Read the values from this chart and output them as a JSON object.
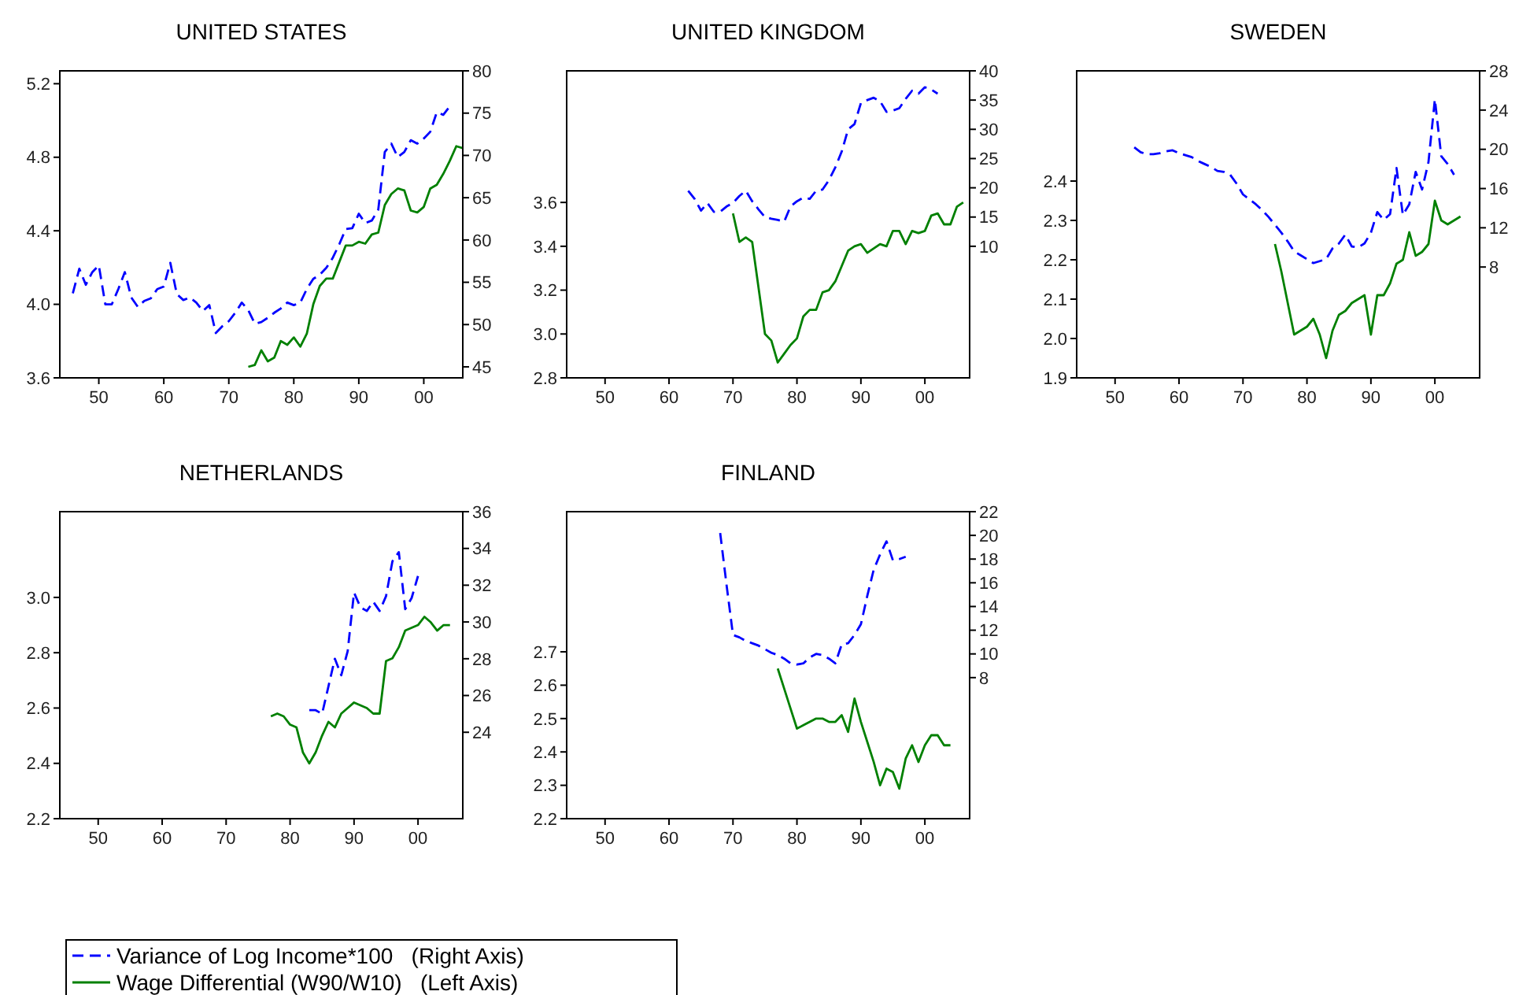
{
  "chart_data": [
    {
      "type": "line",
      "title": "UNITED STATES",
      "xlim": [
        1944,
        2006
      ],
      "xticks": [
        {
          "value": 1950,
          "label": "50"
        },
        {
          "value": 1960,
          "label": "60"
        },
        {
          "value": 1970,
          "label": "70"
        },
        {
          "value": 1980,
          "label": "80"
        },
        {
          "value": 1990,
          "label": "90"
        },
        {
          "value": 2000,
          "label": "00"
        }
      ],
      "ylim": [
        3.6,
        5.27
      ],
      "yticks": [
        {
          "value": 3.6,
          "label": "3.6"
        },
        {
          "value": 4,
          "label": "4.0"
        },
        {
          "value": 4.4,
          "label": "4.4"
        },
        {
          "value": 4.8,
          "label": "4.8"
        },
        {
          "value": 5.2,
          "label": "5.2"
        }
      ],
      "y2lim": [
        43.7,
        80
      ],
      "y2ticks": [
        45,
        50,
        55,
        60,
        65,
        70,
        75,
        80
      ],
      "legend": "bottom",
      "series": [
        {
          "name": "Variance of Log Income*100   (Right Axis)",
          "color": "#0000ff",
          "axis": "y2",
          "line_style": "dashed",
          "x": [
            1946,
            1947,
            1948,
            1949,
            1950,
            1951,
            1952,
            1953,
            1954,
            1955,
            1956,
            1957,
            1958,
            1959,
            1960,
            1961,
            1962,
            1963,
            1964,
            1965,
            1966,
            1967,
            1968,
            1969,
            1970,
            1971,
            1972,
            1973,
            1974,
            1975,
            1976,
            1977,
            1978,
            1979,
            1980,
            1981,
            1982,
            1983,
            1984,
            1985,
            1986,
            1987,
            1988,
            1989,
            1990,
            1991,
            1992,
            1993,
            1994,
            1995,
            1996,
            1997,
            1998,
            1999,
            2000,
            2001,
            2002,
            2003,
            2004
          ],
          "values": [
            53.7,
            56.6,
            54.7,
            56.2,
            57,
            52.4,
            52.4,
            54.2,
            56.2,
            53.2,
            52.1,
            52.8,
            53.1,
            54.2,
            54.5,
            57.3,
            53.6,
            52.9,
            53.2,
            52.6,
            51.6,
            52.3,
            49,
            49.8,
            50.4,
            51.4,
            52.6,
            51.7,
            50.1,
            50.3,
            50.8,
            51.4,
            51.9,
            52.6,
            52.3,
            52.6,
            54.2,
            55.4,
            55.9,
            56.7,
            57.9,
            59.5,
            61.3,
            61.4,
            63.1,
            62,
            62.3,
            63.6,
            70.4,
            71.4,
            69.8,
            70.4,
            71.8,
            71.4,
            72,
            72.8,
            75.1,
            74.8,
            75.8
          ]
        },
        {
          "name": "Wage Differential (W90/W10)   (Left Axis)",
          "color": "#008000",
          "line_style": "solid",
          "x": [
            1973,
            1974,
            1975,
            1976,
            1977,
            1978,
            1979,
            1980,
            1981,
            1982,
            1983,
            1984,
            1985,
            1986,
            1987,
            1988,
            1989,
            1990,
            1991,
            1992,
            1993,
            1994,
            1995,
            1996,
            1997,
            1998,
            1999,
            2000,
            2001,
            2002,
            2003,
            2004,
            2005,
            2006
          ],
          "values": [
            3.66,
            3.67,
            3.75,
            3.69,
            3.71,
            3.8,
            3.78,
            3.82,
            3.77,
            3.84,
            4,
            4.1,
            4.14,
            4.14,
            4.23,
            4.32,
            4.32,
            4.34,
            4.33,
            4.38,
            4.39,
            4.54,
            4.6,
            4.63,
            4.62,
            4.51,
            4.5,
            4.53,
            4.63,
            4.65,
            4.71,
            4.78,
            4.86,
            4.85
          ]
        }
      ]
    },
    {
      "type": "line",
      "title": "UNITED KINGDOM",
      "xlim": [
        1944,
        2007
      ],
      "xticks": [
        {
          "value": 1950,
          "label": "50"
        },
        {
          "value": 1960,
          "label": "60"
        },
        {
          "value": 1970,
          "label": "70"
        },
        {
          "value": 1980,
          "label": "80"
        },
        {
          "value": 1990,
          "label": "90"
        },
        {
          "value": 2000,
          "label": "00"
        }
      ],
      "ylim": [
        2.8,
        4.2
      ],
      "yticks": [
        {
          "value": 2.8,
          "label": "2.8"
        },
        {
          "value": 3,
          "label": "3.0"
        },
        {
          "value": 3.2,
          "label": "3.2"
        },
        {
          "value": 3.4,
          "label": "3.4"
        },
        {
          "value": 3.6,
          "label": "3.6"
        }
      ],
      "y2lim": [
        -12.5,
        40
      ],
      "y2ticks": [
        10,
        15,
        20,
        25,
        30,
        35,
        40
      ],
      "series": [
        {
          "color": "#0000ff",
          "axis": "y2",
          "line_style": "dashed",
          "x": [
            1963,
            1964,
            1965,
            1966,
            1967,
            1968,
            1969,
            1970,
            1971,
            1972,
            1973,
            1974,
            1975,
            1976,
            1977,
            1978,
            1979,
            1980,
            1981,
            1982,
            1983,
            1984,
            1985,
            1986,
            1987,
            1988,
            1989,
            1990,
            1991,
            1992,
            1993,
            1994,
            1995,
            1996,
            1997,
            1998,
            1999,
            2000,
            2001,
            2002
          ],
          "values": [
            19.5,
            18.1,
            16.1,
            17.4,
            15.9,
            15.9,
            16.8,
            17.4,
            18.6,
            19.5,
            17.7,
            16.3,
            15,
            14.7,
            14.5,
            14.2,
            16.8,
            17.7,
            18.3,
            18.1,
            19.5,
            19.7,
            21.3,
            23.5,
            26.2,
            30,
            30.9,
            34.5,
            35,
            35.4,
            34.8,
            33,
            33.2,
            33.6,
            35.2,
            36.6,
            36.1,
            37.2,
            36.8,
            36.1
          ]
        },
        {
          "color": "#008000",
          "line_style": "solid",
          "x": [
            1970,
            1971,
            1972,
            1973,
            1974,
            1975,
            1976,
            1977,
            1978,
            1979,
            1980,
            1981,
            1982,
            1983,
            1984,
            1985,
            1986,
            1987,
            1988,
            1989,
            1990,
            1991,
            1992,
            1993,
            1994,
            1995,
            1996,
            1997,
            1998,
            1999,
            2000,
            2001,
            2002,
            2003,
            2004,
            2005,
            2006
          ],
          "values": [
            3.55,
            3.42,
            3.44,
            3.42,
            3.21,
            3,
            2.97,
            2.87,
            2.91,
            2.95,
            2.98,
            3.08,
            3.11,
            3.11,
            3.19,
            3.2,
            3.24,
            3.31,
            3.38,
            3.4,
            3.41,
            3.37,
            3.39,
            3.41,
            3.4,
            3.47,
            3.47,
            3.41,
            3.47,
            3.46,
            3.47,
            3.54,
            3.55,
            3.5,
            3.5,
            3.58,
            3.6
          ]
        }
      ]
    },
    {
      "type": "line",
      "title": "SWEDEN",
      "xlim": [
        1944,
        2007
      ],
      "xticks": [
        {
          "value": 1950,
          "label": "50"
        },
        {
          "value": 1960,
          "label": "60"
        },
        {
          "value": 1970,
          "label": "70"
        },
        {
          "value": 1980,
          "label": "80"
        },
        {
          "value": 1990,
          "label": "90"
        },
        {
          "value": 2000,
          "label": "00"
        }
      ],
      "ylim": [
        1.9,
        2.68
      ],
      "yticks": [
        {
          "value": 1.9,
          "label": "1.9"
        },
        {
          "value": 2,
          "label": "2.0"
        },
        {
          "value": 2.1,
          "label": "2.1"
        },
        {
          "value": 2.2,
          "label": "2.2"
        },
        {
          "value": 2.3,
          "label": "2.3"
        },
        {
          "value": 2.4,
          "label": "2.4"
        }
      ],
      "y2lim": [
        -3.3,
        28
      ],
      "y2ticks": [
        8,
        12,
        16,
        20,
        24,
        28
      ],
      "series": [
        {
          "color": "#0000ff",
          "axis": "y2",
          "line_style": "dashed",
          "x": [
            1953,
            1954,
            1955,
            1956,
            1957,
            1958,
            1959,
            1960,
            1961,
            1962,
            1963,
            1964,
            1965,
            1966,
            1967,
            1968,
            1969,
            1970,
            1971,
            1972,
            1973,
            1974,
            1975,
            1976,
            1977,
            1978,
            1979,
            1980,
            1981,
            1982,
            1983,
            1984,
            1985,
            1986,
            1987,
            1988,
            1989,
            1990,
            1991,
            1992,
            1993,
            1994,
            1995,
            1996,
            1997,
            1998,
            1999,
            2000,
            2001,
            2002,
            2003
          ],
          "values": [
            20.2,
            19.7,
            19.5,
            19.5,
            19.6,
            19.8,
            19.9,
            19.6,
            19.4,
            19.2,
            18.8,
            18.5,
            18.2,
            17.8,
            17.7,
            17.4,
            16.5,
            15.4,
            14.9,
            14.4,
            13.8,
            13.1,
            12.3,
            11.5,
            10.6,
            9.6,
            9.2,
            8.8,
            8.4,
            8.6,
            8.8,
            9.9,
            10.4,
            11.3,
            10.1,
            10,
            10.4,
            11.5,
            13.6,
            12.8,
            13.4,
            18.1,
            13.3,
            14.4,
            17.7,
            15.9,
            18.7,
            25.1,
            19.3,
            18.5,
            17.4
          ]
        },
        {
          "color": "#008000",
          "line_style": "solid",
          "x": [
            1975,
            1976,
            1977,
            1978,
            1979,
            1980,
            1981,
            1982,
            1983,
            1984,
            1985,
            1986,
            1987,
            1988,
            1989,
            1990,
            1991,
            1992,
            1993,
            1994,
            1995,
            1996,
            1997,
            1998,
            1999,
            2000,
            2001,
            2002,
            2003,
            2004
          ],
          "values": [
            2.24,
            2.17,
            2.09,
            2.01,
            2.02,
            2.03,
            2.05,
            2.01,
            1.95,
            2.02,
            2.06,
            2.07,
            2.09,
            2.1,
            2.11,
            2.01,
            2.11,
            2.11,
            2.14,
            2.19,
            2.2,
            2.27,
            2.21,
            2.22,
            2.24,
            2.35,
            2.3,
            2.29,
            2.3,
            2.31
          ]
        }
      ]
    },
    {
      "type": "line",
      "title": "NETHERLANDS",
      "xlim": [
        1944,
        2007
      ],
      "xticks": [
        {
          "value": 1950,
          "label": "50"
        },
        {
          "value": 1960,
          "label": "60"
        },
        {
          "value": 1970,
          "label": "70"
        },
        {
          "value": 1980,
          "label": "80"
        },
        {
          "value": 1990,
          "label": "90"
        },
        {
          "value": 2000,
          "label": "00"
        }
      ],
      "ylim": [
        2.2,
        3.31
      ],
      "yticks": [
        {
          "value": 2.2,
          "label": "2.2"
        },
        {
          "value": 2.4,
          "label": "2.4"
        },
        {
          "value": 2.6,
          "label": "2.6"
        },
        {
          "value": 2.8,
          "label": "2.8"
        },
        {
          "value": 3,
          "label": "3.0"
        }
      ],
      "y2lim": [
        19.3,
        36
      ],
      "y2ticks": [
        24,
        26,
        28,
        30,
        32,
        34,
        36
      ],
      "series": [
        {
          "color": "#0000ff",
          "axis": "y2",
          "line_style": "dashed",
          "x": [
            1983,
            1984,
            1985,
            1986,
            1987,
            1988,
            1989,
            1990,
            1991,
            1992,
            1993,
            1994,
            1995,
            1996,
            1997,
            1998,
            1999,
            2000
          ],
          "values": [
            25.2,
            25.2,
            25,
            26.5,
            28,
            27.1,
            28.4,
            31.6,
            30.8,
            30.6,
            31.1,
            30.6,
            31.4,
            33.3,
            33.8,
            30.7,
            31.3,
            32.5
          ]
        },
        {
          "color": "#008000",
          "line_style": "solid",
          "x": [
            1977,
            1978,
            1979,
            1980,
            1981,
            1982,
            1983,
            1984,
            1985,
            1986,
            1987,
            1988,
            1989,
            1990,
            1991,
            1992,
            1993,
            1994,
            1995,
            1996,
            1997,
            1998,
            1999,
            2000,
            2001,
            2002,
            2003,
            2004,
            2005
          ],
          "values": [
            2.57,
            2.58,
            2.57,
            2.54,
            2.53,
            2.44,
            2.4,
            2.44,
            2.5,
            2.55,
            2.53,
            2.58,
            2.6,
            2.62,
            2.61,
            2.6,
            2.58,
            2.58,
            2.77,
            2.78,
            2.82,
            2.88,
            2.89,
            2.9,
            2.93,
            2.91,
            2.88,
            2.9,
            2.9
          ]
        }
      ]
    },
    {
      "type": "line",
      "title": "FINLAND",
      "xlim": [
        1944,
        2007
      ],
      "xticks": [
        {
          "value": 1950,
          "label": "50"
        },
        {
          "value": 1960,
          "label": "60"
        },
        {
          "value": 1970,
          "label": "70"
        },
        {
          "value": 1980,
          "label": "80"
        },
        {
          "value": 1990,
          "label": "90"
        },
        {
          "value": 2000,
          "label": "00"
        }
      ],
      "ylim": [
        2.2,
        3.12
      ],
      "yticks": [
        {
          "value": 2.2,
          "label": "2.2"
        },
        {
          "value": 2.3,
          "label": "2.3"
        },
        {
          "value": 2.4,
          "label": "2.4"
        },
        {
          "value": 2.5,
          "label": "2.5"
        },
        {
          "value": 2.6,
          "label": "2.6"
        },
        {
          "value": 2.7,
          "label": "2.7"
        }
      ],
      "y2lim": [
        -3.9,
        22
      ],
      "y2ticks": [
        8,
        10,
        12,
        14,
        16,
        18,
        20,
        22
      ],
      "series": [
        {
          "color": "#0000ff",
          "axis": "y2",
          "line_style": "dashed",
          "x": [
            1968,
            1969,
            1970,
            1971,
            1972,
            1973,
            1974,
            1975,
            1976,
            1977,
            1978,
            1979,
            1980,
            1981,
            1982,
            1983,
            1984,
            1985,
            1986,
            1987,
            1988,
            1989,
            1990,
            1991,
            1992,
            1993,
            1994,
            1995,
            1996,
            1997
          ],
          "values": [
            20.2,
            15.8,
            11.6,
            11.4,
            11.1,
            10.9,
            10.7,
            10.4,
            10.1,
            9.9,
            9.6,
            9.2,
            9.1,
            9.2,
            9.7,
            10,
            9.9,
            9.6,
            9.2,
            10.8,
            10.9,
            11.6,
            12.5,
            14.9,
            17.1,
            18.4,
            19.5,
            17.9,
            18,
            18.2
          ]
        },
        {
          "color": "#008000",
          "line_style": "solid",
          "x": [
            1977,
            1978,
            1979,
            1980,
            1981,
            1982,
            1983,
            1984,
            1985,
            1986,
            1987,
            1988,
            1989,
            1990,
            1991,
            1992,
            1993,
            1994,
            1995,
            1996,
            1997,
            1998,
            1999,
            2000,
            2001,
            2002,
            2003,
            2004
          ],
          "values": [
            2.65,
            2.59,
            2.53,
            2.47,
            2.48,
            2.49,
            2.5,
            2.5,
            2.49,
            2.49,
            2.51,
            2.46,
            2.56,
            2.49,
            2.43,
            2.37,
            2.3,
            2.35,
            2.34,
            2.29,
            2.38,
            2.42,
            2.37,
            2.42,
            2.45,
            2.45,
            2.42,
            2.42
          ]
        }
      ]
    }
  ]
}
